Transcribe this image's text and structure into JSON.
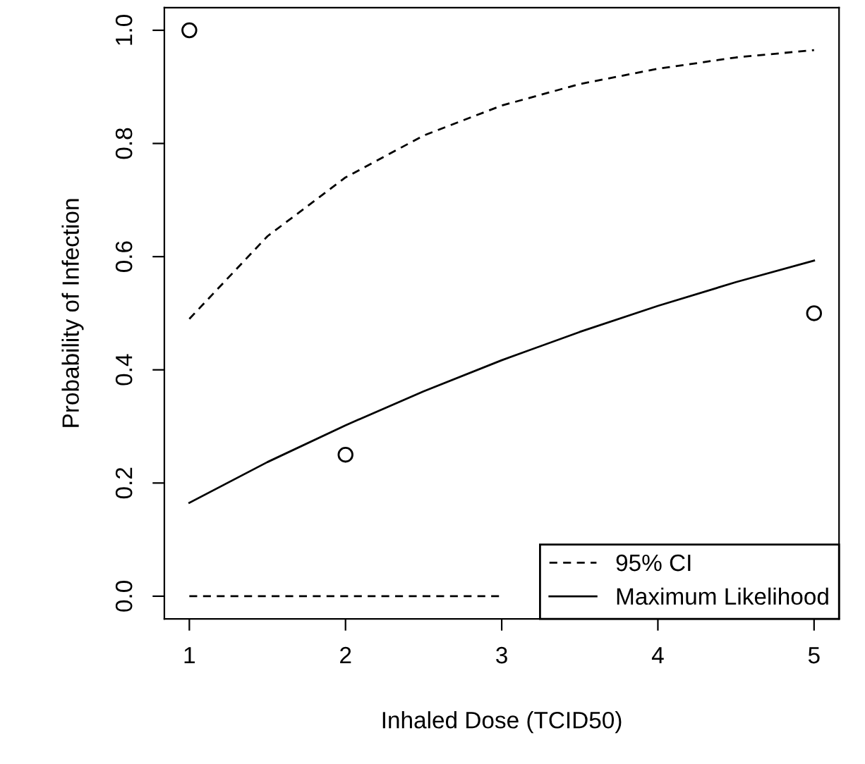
{
  "chart_data": {
    "type": "line",
    "xlabel": "Inhaled Dose (TCID50)",
    "ylabel": "Probability of Infection",
    "xlim": [
      0.84,
      5.16
    ],
    "ylim": [
      -0.04,
      1.04
    ],
    "xticks": [
      1,
      2,
      3,
      4,
      5
    ],
    "yticks": [
      {
        "value": 0,
        "label": "0.0"
      },
      0.2,
      0.4,
      0.6,
      0.8,
      {
        "value": 1,
        "label": "1.0"
      }
    ],
    "grid": false,
    "legend": "bottom right",
    "series": [
      {
        "name": "95% CI",
        "line_style": "dashed",
        "marker": "none",
        "color": "#000000",
        "x": [
          1,
          1.5,
          2,
          2.5,
          3,
          3.5,
          4,
          4.5,
          5
        ],
        "values": [
          0.49,
          0.636,
          0.74,
          0.814,
          0.867,
          0.905,
          0.932,
          0.952,
          0.965
        ]
      },
      {
        "line_style": "dashed",
        "marker": "none",
        "color": "#000000",
        "x": [
          1,
          2,
          3
        ],
        "values": [
          0,
          0,
          0
        ]
      },
      {
        "name": "Maximum Likelihood",
        "line_style": "solid",
        "marker": "none",
        "color": "#000000",
        "x": [
          1,
          1.5,
          2,
          2.5,
          3,
          3.5,
          4,
          4.5,
          5
        ],
        "values": [
          0.165,
          0.237,
          0.302,
          0.362,
          0.417,
          0.467,
          0.513,
          0.555,
          0.593
        ]
      },
      {
        "type": "scatter",
        "marker": "circle",
        "color": "#000000",
        "x": [
          1,
          2,
          5
        ],
        "values": [
          1.0,
          0.25,
          0.5
        ]
      }
    ]
  }
}
